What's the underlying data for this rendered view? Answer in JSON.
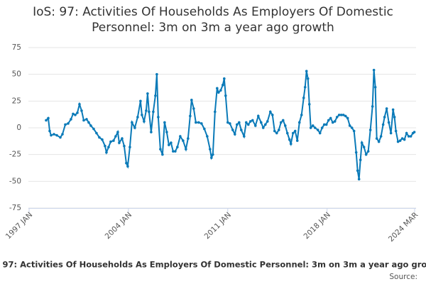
{
  "chart_data": {
    "type": "line",
    "title": "IoS: 97: Activities Of Households As Employers Of Domestic Personnel: 3m on 3m a year ago growth",
    "source": "Source:",
    "color": "#0a7ab8",
    "grid": true,
    "ylim": [
      -75,
      75
    ],
    "yticks": [
      -75,
      -50,
      -25,
      0,
      25,
      50,
      75
    ],
    "xlim": [
      1997,
      2024.17
    ],
    "xticks": [
      {
        "value": 1997,
        "label": "1997 JAN"
      },
      {
        "value": 2004,
        "label": "2004 JAN"
      },
      {
        "value": 2011,
        "label": "2011 JAN"
      },
      {
        "value": 2018,
        "label": "2018 JAN"
      },
      {
        "value": 2024.17,
        "label": "2024 MAR"
      }
    ],
    "x": [
      1998.2,
      1998.35,
      1998.45,
      1998.55,
      1998.75,
      1998.95,
      1999.2,
      1999.35,
      1999.55,
      1999.75,
      1999.95,
      2000.1,
      2000.25,
      2000.4,
      2000.55,
      2000.7,
      2000.85,
      2001.05,
      2001.2,
      2001.35,
      2001.55,
      2001.75,
      2001.95,
      2002.15,
      2002.35,
      2002.45,
      2002.6,
      2002.75,
      2002.95,
      2003.1,
      2003.25,
      2003.35,
      2003.55,
      2003.7,
      2003.85,
      2003.95,
      2004.1,
      2004.25,
      2004.45,
      2004.65,
      2004.85,
      2004.95,
      2005.1,
      2005.25,
      2005.35,
      2005.45,
      2005.6,
      2005.75,
      2005.9,
      2006.0,
      2006.1,
      2006.25,
      2006.4,
      2006.55,
      2006.7,
      2006.85,
      2007.0,
      2007.15,
      2007.3,
      2007.45,
      2007.65,
      2007.85,
      2008.05,
      2008.2,
      2008.35,
      2008.45,
      2008.6,
      2008.75,
      2008.95,
      2009.15,
      2009.35,
      2009.55,
      2009.75,
      2009.85,
      2009.95,
      2010.1,
      2010.25,
      2010.35,
      2010.5,
      2010.65,
      2010.75,
      2010.85,
      2011.0,
      2011.15,
      2011.35,
      2011.5,
      2011.65,
      2011.8,
      2011.95,
      2012.15,
      2012.3,
      2012.45,
      2012.6,
      2012.75,
      2012.95,
      2013.15,
      2013.35,
      2013.5,
      2013.65,
      2013.8,
      2014.0,
      2014.15,
      2014.3,
      2014.45,
      2014.6,
      2014.75,
      2014.9,
      2015.05,
      2015.2,
      2015.35,
      2015.45,
      2015.6,
      2015.75,
      2015.9,
      2016.05,
      2016.2,
      2016.35,
      2016.45,
      2016.55,
      2016.65,
      2016.75,
      2016.85,
      2017.0,
      2017.15,
      2017.35,
      2017.5,
      2017.65,
      2017.8,
      2017.95,
      2018.1,
      2018.25,
      2018.4,
      2018.55,
      2018.7,
      2018.85,
      2019.0,
      2019.15,
      2019.3,
      2019.45,
      2019.6,
      2019.75,
      2019.9,
      2020.05,
      2020.15,
      2020.25,
      2020.35,
      2020.45,
      2020.6,
      2020.75,
      2020.9,
      2021.05,
      2021.2,
      2021.3,
      2021.4,
      2021.5,
      2021.65,
      2021.8,
      2021.95,
      2022.05,
      2022.2,
      2022.35,
      2022.5,
      2022.65,
      2022.75,
      2022.85,
      2023.0,
      2023.15,
      2023.3,
      2023.45,
      2023.6,
      2023.75,
      2023.9,
      2024.05,
      2024.15
    ],
    "values": [
      7,
      9,
      -3,
      -7,
      -6,
      -7,
      -9,
      -6,
      3,
      4,
      8,
      13,
      12,
      14,
      22,
      16,
      7,
      8,
      5,
      2,
      -1,
      -5,
      -9,
      -11,
      -17,
      -23,
      -18,
      -13,
      -12,
      -8,
      -4,
      -14,
      -10,
      -17,
      -33,
      -36,
      -18,
      5,
      0,
      10,
      25,
      12,
      6,
      16,
      32,
      15,
      -4,
      15,
      30,
      50,
      10,
      -20,
      -25,
      5,
      -4,
      -16,
      -14,
      -22,
      -22,
      -18,
      -8,
      -12,
      -20,
      -10,
      11,
      26,
      18,
      5,
      5,
      4,
      -1,
      -8,
      -20,
      -28,
      -25,
      15,
      37,
      33,
      35,
      40,
      46,
      30,
      5,
      4,
      -2,
      -6,
      3,
      5,
      -2,
      -8,
      5,
      3,
      6,
      7,
      2,
      11,
      5,
      0,
      3,
      6,
      15,
      12,
      -3,
      -5,
      -2,
      5,
      7,
      2,
      -5,
      -11,
      -15,
      -5,
      -3,
      -12,
      5,
      12,
      28,
      38,
      53,
      46,
      22,
      0,
      2,
      0,
      -2,
      -5,
      0,
      3,
      3,
      7,
      9,
      5,
      6,
      10,
      12,
      12,
      12,
      11,
      9,
      2,
      0,
      -3,
      -23,
      -40,
      -48,
      -30,
      -14,
      -18,
      -25,
      -22,
      -2,
      20,
      54,
      38,
      -10,
      -13,
      -8,
      3,
      10,
      18,
      5,
      -5,
      17,
      10,
      -3,
      -13,
      -12,
      -10,
      -11,
      -5,
      -8,
      -8,
      -5,
      -4
    ]
  }
}
